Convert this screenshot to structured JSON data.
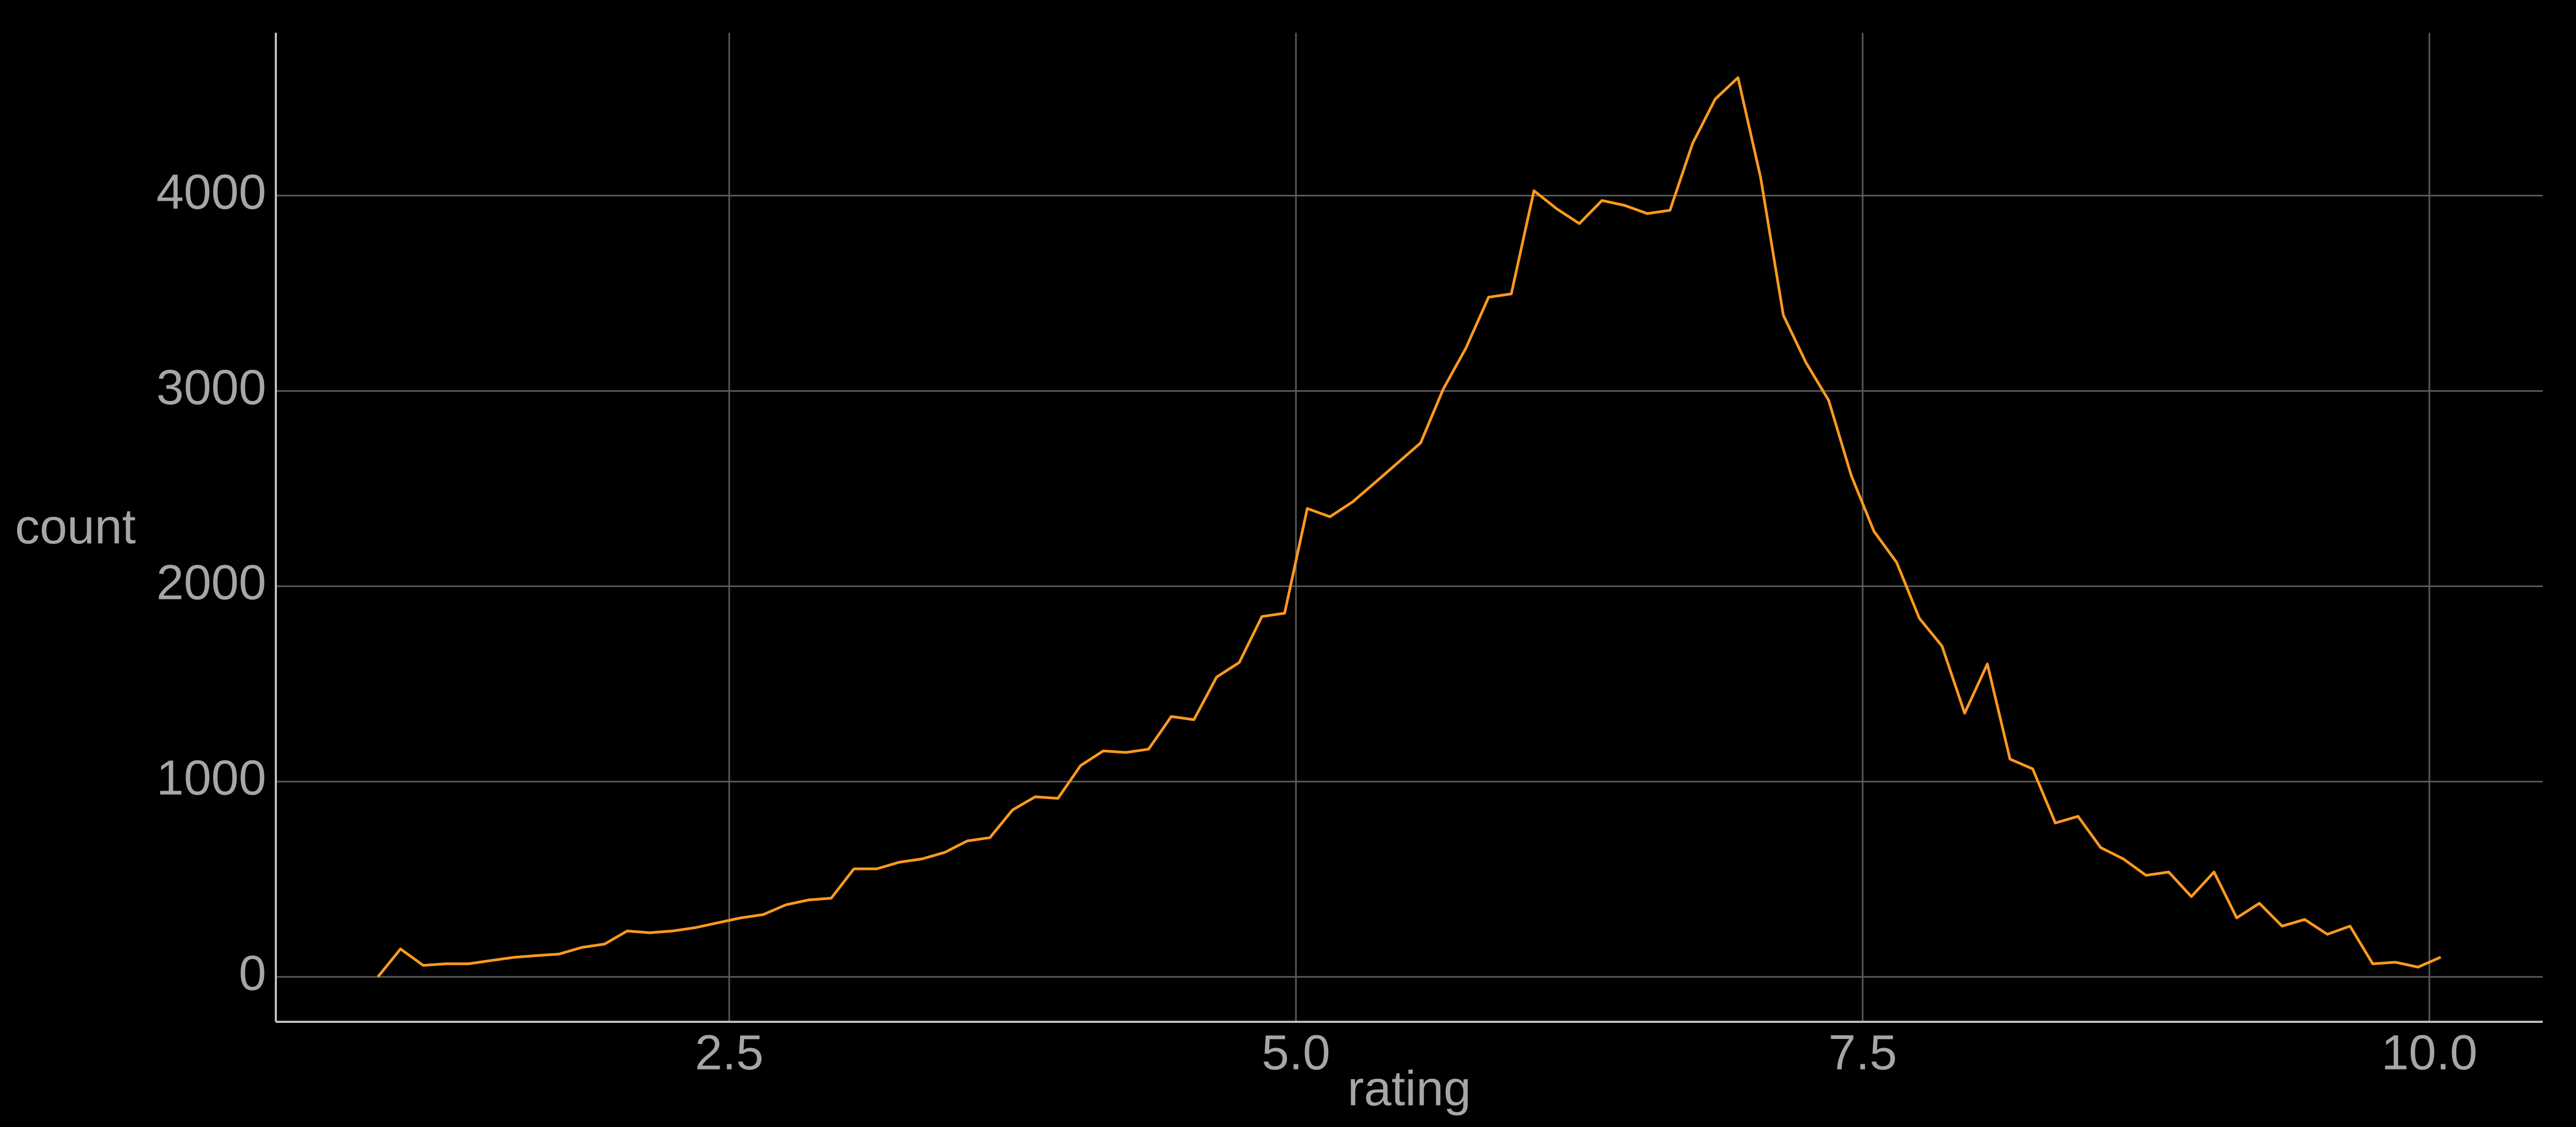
{
  "chart_data": {
    "type": "line",
    "x_label": "rating",
    "y_label": "count",
    "x": [
      0.95,
      1.05,
      1.15,
      1.25,
      1.35,
      1.45,
      1.55,
      1.65,
      1.75,
      1.85,
      1.95,
      2.05,
      2.15,
      2.25,
      2.35,
      2.45,
      2.55,
      2.65,
      2.75,
      2.85,
      2.95,
      3.05,
      3.15,
      3.25,
      3.35,
      3.45,
      3.55,
      3.65,
      3.75,
      3.85,
      3.95,
      4.05,
      4.15,
      4.25,
      4.35,
      4.45,
      4.55,
      4.65,
      4.75,
      4.85,
      4.95,
      5.05,
      5.15,
      5.25,
      5.35,
      5.45,
      5.55,
      5.65,
      5.75,
      5.85,
      5.95,
      6.05,
      6.15,
      6.25,
      6.35,
      6.45,
      6.55,
      6.65,
      6.75,
      6.85,
      6.95,
      7.05,
      7.15,
      7.25,
      7.35,
      7.45,
      7.55,
      7.65,
      7.75,
      7.85,
      7.95,
      8.05,
      8.15,
      8.25,
      8.35,
      8.45,
      8.55,
      8.65,
      8.75,
      8.85,
      8.95,
      9.05,
      9.15,
      9.25,
      9.35,
      9.45,
      9.55,
      9.65,
      9.75,
      9.85,
      9.95,
      10.05
    ],
    "values": [
      0,
      143,
      59,
      67,
      67,
      84,
      100,
      109,
      117,
      151,
      168,
      235,
      226,
      235,
      252,
      277,
      302,
      319,
      369,
      394,
      403,
      553,
      553,
      587,
      604,
      637,
      696,
      713,
      855,
      922,
      914,
      1082,
      1157,
      1149,
      1166,
      1333,
      1317,
      1535,
      1610,
      1845,
      1862,
      2398,
      2356,
      2432,
      2532,
      2633,
      2734,
      3010,
      3220,
      3480,
      3497,
      4025,
      3933,
      3857,
      3975,
      3950,
      3908,
      3925,
      4268,
      4495,
      4604,
      4092,
      3388,
      3145,
      2952,
      2566,
      2281,
      2122,
      1836,
      1694,
      1350,
      1602,
      1115,
      1065,
      788,
      822,
      662,
      604,
      520,
      537,
      411,
      537,
      302,
      377,
      260,
      294,
      218,
      260,
      67,
      75,
      50,
      101
    ],
    "color": "#ff9a1f",
    "xlim": [
      0.5,
      10.5
    ],
    "ylim": [
      -230,
      4834
    ],
    "xticks": [
      2.5,
      {
        "value": 5,
        "label": "5.0"
      },
      7.5,
      {
        "value": 10,
        "label": "10.0"
      }
    ],
    "yticks": [
      0,
      1000,
      2000,
      3000,
      4000
    ],
    "grid": true
  }
}
